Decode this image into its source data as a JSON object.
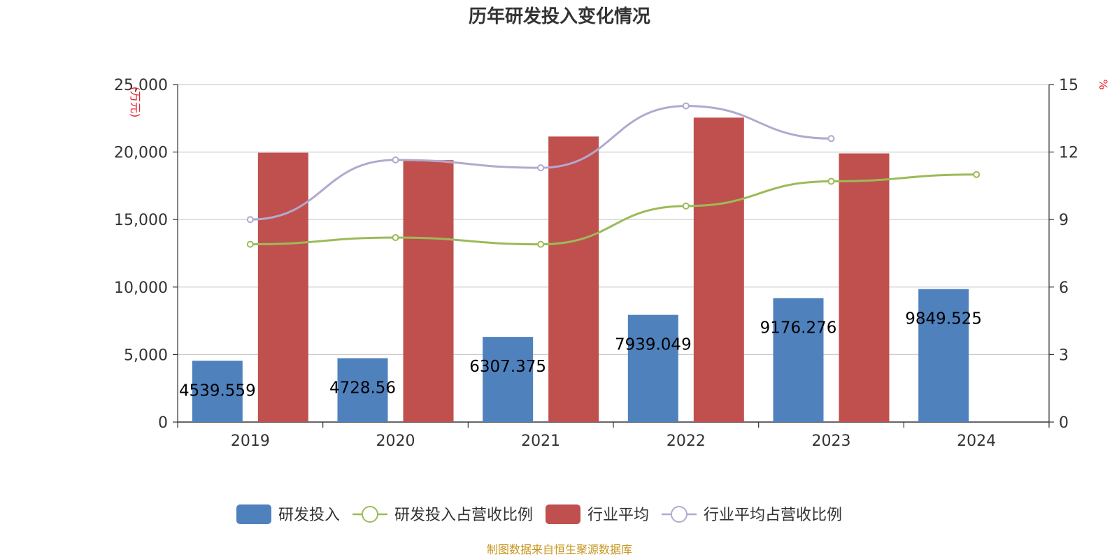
{
  "chart_data": {
    "type": "bar",
    "title": "历年研发投入变化情况",
    "categories": [
      "2019",
      "2020",
      "2021",
      "2022",
      "2023",
      "2024"
    ],
    "y_left": {
      "unit": "万元",
      "min": 0,
      "max": 25000,
      "ticks": [
        "0",
        "5,000",
        "10,000",
        "15,000",
        "20,000",
        "25,000"
      ]
    },
    "y_right": {
      "unit": "%",
      "min": 0,
      "max": 15,
      "ticks": [
        "0",
        "3",
        "6",
        "9",
        "12",
        "15"
      ]
    },
    "series": [
      {
        "name": "研发投入",
        "kind": "bar",
        "axis": "left",
        "color": "#4f81bd",
        "values": [
          4539.559,
          4728.56,
          6307.375,
          7939.049,
          9176.276,
          9849.525
        ],
        "labels": [
          "4539.559",
          "4728.56",
          "6307.375",
          "7939.049",
          "9176.276",
          "9849.525"
        ]
      },
      {
        "name": "研发投入占营收比例",
        "kind": "line",
        "axis": "right",
        "color": "#9bbb59",
        "values": [
          7.9,
          8.2,
          7.9,
          9.6,
          10.7,
          11.0
        ]
      },
      {
        "name": "行业平均",
        "kind": "bar",
        "axis": "left",
        "color": "#c0504d",
        "values": [
          19950,
          19400,
          21150,
          22550,
          19900,
          null
        ]
      },
      {
        "name": "行业平均占营收比例",
        "kind": "line",
        "axis": "right",
        "color": "#b3a8cf",
        "values": [
          9.0,
          11.65,
          11.3,
          14.05,
          12.6,
          null
        ]
      }
    ],
    "grid": true,
    "legend": "bottom-center"
  },
  "source": "制图数据来自恒生聚源数据库"
}
